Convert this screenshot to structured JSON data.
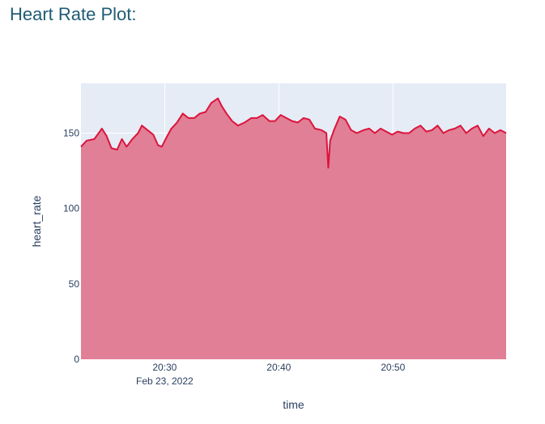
{
  "page": {
    "title": "Heart Rate Plot:"
  },
  "chart_data": {
    "type": "area",
    "xlabel": "time",
    "ylabel": "heart_rate",
    "date_label": "Feb 23, 2022",
    "x_start": "2022-02-23 20:22:40",
    "x_end": "2022-02-23 20:59:55",
    "ylim": [
      0,
      183
    ],
    "yticks": [
      0,
      50,
      100,
      150
    ],
    "xticks": [
      {
        "time": "20:30",
        "label": "20:30"
      },
      {
        "time": "20:40",
        "label": "20:40"
      },
      {
        "time": "20:50",
        "label": "20:50"
      }
    ],
    "grid": true,
    "colors": {
      "line": "#dc143c",
      "fill": "#e07f95",
      "plot_bg": "#e5ecf6",
      "title": "#1f5c75"
    },
    "series": [
      {
        "x": [
          "20:22:40",
          "20:23:10",
          "20:23:50",
          "20:24:30",
          "20:24:55",
          "20:25:20",
          "20:25:50",
          "20:26:15",
          "20:26:40",
          "20:27:10",
          "20:27:40",
          "20:28:00",
          "20:28:30",
          "20:29:00",
          "20:29:25",
          "20:29:45",
          "20:30:05",
          "20:30:35",
          "20:31:05",
          "20:31:35",
          "20:32:05",
          "20:32:35",
          "20:33:05",
          "20:33:35",
          "20:34:05",
          "20:34:40",
          "20:35:00",
          "20:35:25",
          "20:35:55",
          "20:36:25",
          "20:37:00",
          "20:37:35",
          "20:38:05",
          "20:38:35",
          "20:39:10",
          "20:39:40",
          "20:40:10",
          "20:40:40",
          "20:41:10",
          "20:41:40",
          "20:42:10",
          "20:42:40",
          "20:43:10",
          "20:43:45",
          "20:44:10",
          "20:44:20",
          "20:44:30",
          "20:44:50",
          "20:45:20",
          "20:45:50",
          "20:46:20",
          "20:46:50",
          "20:47:25",
          "20:47:55",
          "20:48:25",
          "20:48:55",
          "20:49:25",
          "20:49:55",
          "20:50:25",
          "20:50:55",
          "20:51:25",
          "20:51:55",
          "20:52:25",
          "20:52:55",
          "20:53:25",
          "20:53:55",
          "20:54:25",
          "20:54:55",
          "20:55:25",
          "20:55:55",
          "20:56:25",
          "20:56:55",
          "20:57:25",
          "20:57:55",
          "20:58:25",
          "20:58:55",
          "20:59:25",
          "20:59:55"
        ],
        "y": [
          141,
          145,
          146,
          153,
          148,
          140,
          139,
          146,
          141,
          146,
          150,
          155,
          152,
          149,
          142,
          141,
          146,
          153,
          157,
          163,
          160,
          160,
          163,
          164,
          170,
          173,
          168,
          163,
          158,
          155,
          157,
          160,
          160,
          162,
          158,
          158,
          162,
          160,
          158,
          157,
          160,
          159,
          153,
          152,
          150,
          127,
          145,
          152,
          161,
          159,
          152,
          150,
          152,
          153,
          150,
          153,
          151,
          149,
          151,
          150,
          150,
          153,
          155,
          151,
          152,
          155,
          150,
          152,
          153,
          155,
          150,
          153,
          155,
          148,
          153,
          150,
          152,
          150
        ]
      }
    ]
  }
}
